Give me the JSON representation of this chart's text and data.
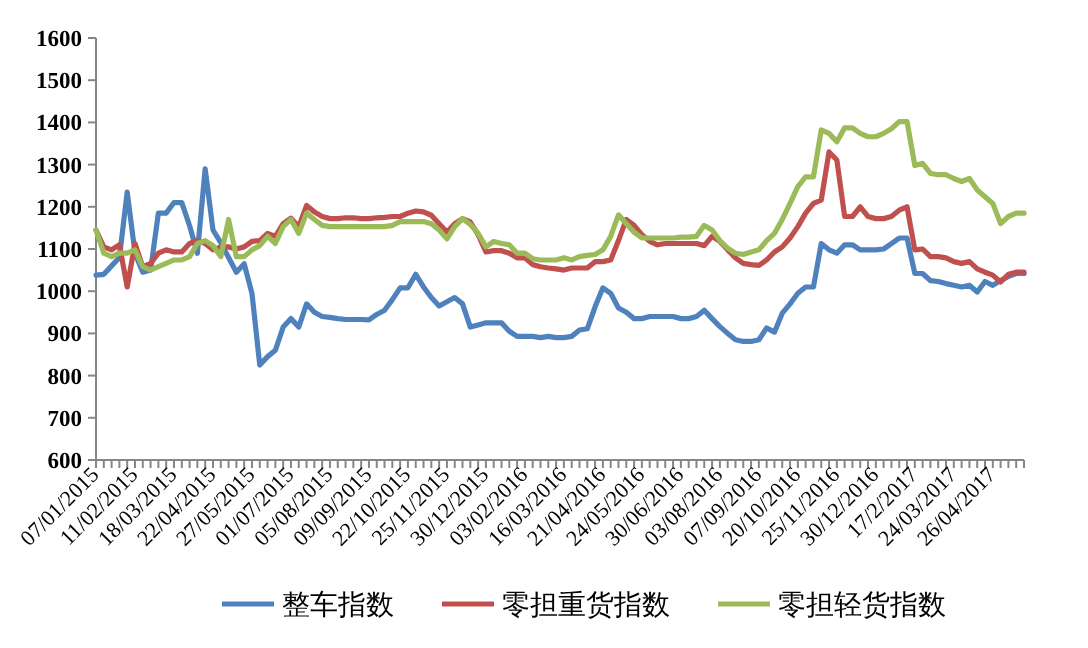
{
  "chart_data": {
    "type": "line",
    "categories": [
      "07/01/2015",
      null,
      null,
      null,
      null,
      "11/02/2015",
      null,
      null,
      null,
      null,
      "18/03/2015",
      null,
      null,
      null,
      null,
      "22/04/2015",
      null,
      null,
      null,
      null,
      "27/05/2015",
      null,
      null,
      null,
      null,
      "01/07/2015",
      null,
      null,
      null,
      null,
      "05/08/2015",
      null,
      null,
      null,
      null,
      "09/09/2015",
      null,
      null,
      null,
      null,
      "22/10/2015",
      null,
      null,
      null,
      null,
      "25/11/2015",
      null,
      null,
      null,
      null,
      "30/12/2015",
      null,
      null,
      null,
      null,
      "03/02/2016",
      null,
      null,
      null,
      null,
      "16/03/2016",
      null,
      null,
      null,
      null,
      "21/04/2016",
      null,
      null,
      null,
      null,
      "24/05/2016",
      null,
      null,
      null,
      null,
      "30/06/2016",
      null,
      null,
      null,
      null,
      "03/08/2016",
      null,
      null,
      null,
      null,
      "07/09/2016",
      null,
      null,
      null,
      null,
      "20/10/2016",
      null,
      null,
      null,
      null,
      "25/11/2016",
      null,
      null,
      null,
      null,
      "30/12/2016",
      null,
      null,
      null,
      null,
      "17/2/2017",
      null,
      null,
      null,
      null,
      "24/03/2017",
      null,
      null,
      null,
      null,
      "26/04/2017",
      null,
      null,
      null,
      null
    ],
    "series": [
      {
        "name": "整车指数",
        "color": "#4f81bd",
        "values": [
          1038,
          1040,
          1060,
          1080,
          1235,
          1090,
          1045,
          1050,
          1185,
          1185,
          1210,
          1210,
          1155,
          1090,
          1290,
          1145,
          1115,
          1080,
          1045,
          1065,
          995,
          825,
          845,
          860,
          915,
          935,
          915,
          970,
          950,
          940,
          938,
          935,
          933,
          933,
          933,
          932,
          945,
          955,
          980,
          1008,
          1008,
          1040,
          1010,
          985,
          965,
          975,
          985,
          970,
          915,
          920,
          925,
          925,
          925,
          905,
          893,
          893,
          893,
          890,
          893,
          890,
          890,
          893,
          908,
          911,
          963,
          1008,
          995,
          960,
          950,
          935,
          935,
          940,
          940,
          940,
          940,
          935,
          935,
          940,
          955,
          935,
          916,
          900,
          885,
          881,
          881,
          885,
          913,
          903,
          948,
          970,
          995,
          1010,
          1010,
          1113,
          1098,
          1090,
          1110,
          1110,
          1098,
          1098,
          1098,
          1100,
          1113,
          1126,
          1126,
          1042,
          1042,
          1025,
          1023,
          1018,
          1014,
          1010,
          1014,
          998,
          1023,
          1014,
          1025,
          1035,
          1042,
          1042
        ]
      },
      {
        "name": "零担重货指数",
        "color": "#c0504d",
        "values": [
          1145,
          1105,
          1098,
          1110,
          1010,
          1113,
          1058,
          1066,
          1090,
          1098,
          1093,
          1093,
          1113,
          1120,
          1113,
          1098,
          1105,
          1105,
          1100,
          1105,
          1118,
          1120,
          1137,
          1130,
          1160,
          1173,
          1153,
          1203,
          1188,
          1177,
          1172,
          1172,
          1174,
          1174,
          1172,
          1172,
          1174,
          1175,
          1177,
          1177,
          1185,
          1190,
          1188,
          1180,
          1160,
          1140,
          1160,
          1172,
          1164,
          1134,
          1093,
          1096,
          1096,
          1090,
          1079,
          1079,
          1063,
          1058,
          1055,
          1053,
          1050,
          1055,
          1055,
          1055,
          1070,
          1070,
          1074,
          1120,
          1170,
          1156,
          1134,
          1118,
          1110,
          1113,
          1113,
          1113,
          1113,
          1113,
          1108,
          1130,
          1118,
          1098,
          1079,
          1066,
          1063,
          1061,
          1074,
          1093,
          1105,
          1126,
          1153,
          1185,
          1208,
          1216,
          1330,
          1311,
          1177,
          1177,
          1200,
          1177,
          1172,
          1172,
          1177,
          1192,
          1200,
          1098,
          1100,
          1082,
          1082,
          1079,
          1070,
          1066,
          1070,
          1053,
          1045,
          1038,
          1022,
          1040,
          1045,
          1045
        ]
      },
      {
        "name": "零担轻货指数",
        "color": "#9bbb59",
        "values": [
          1145,
          1090,
          1082,
          1090,
          1090,
          1098,
          1058,
          1050,
          1058,
          1066,
          1074,
          1074,
          1082,
          1113,
          1120,
          1108,
          1082,
          1170,
          1082,
          1082,
          1098,
          1108,
          1130,
          1113,
          1153,
          1170,
          1137,
          1185,
          1170,
          1156,
          1153,
          1153,
          1153,
          1153,
          1153,
          1153,
          1153,
          1153,
          1156,
          1165,
          1165,
          1165,
          1165,
          1160,
          1145,
          1124,
          1153,
          1172,
          1158,
          1137,
          1105,
          1118,
          1113,
          1110,
          1090,
          1090,
          1077,
          1074,
          1074,
          1074,
          1079,
          1074,
          1082,
          1085,
          1087,
          1098,
          1130,
          1181,
          1160,
          1140,
          1126,
          1126,
          1126,
          1126,
          1126,
          1128,
          1128,
          1130,
          1156,
          1145,
          1120,
          1102,
          1090,
          1087,
          1093,
          1098,
          1120,
          1137,
          1170,
          1208,
          1248,
          1271,
          1271,
          1382,
          1374,
          1354,
          1387,
          1387,
          1374,
          1366,
          1366,
          1374,
          1385,
          1402,
          1402,
          1298,
          1303,
          1279,
          1276,
          1276,
          1267,
          1260,
          1267,
          1240,
          1224,
          1208,
          1160,
          1177,
          1185,
          1185
        ]
      }
    ],
    "ylim": [
      600,
      1600
    ],
    "yticks": [
      600,
      700,
      800,
      900,
      1000,
      1100,
      1200,
      1300,
      1400,
      1500,
      1600
    ],
    "legend": "bottom"
  }
}
